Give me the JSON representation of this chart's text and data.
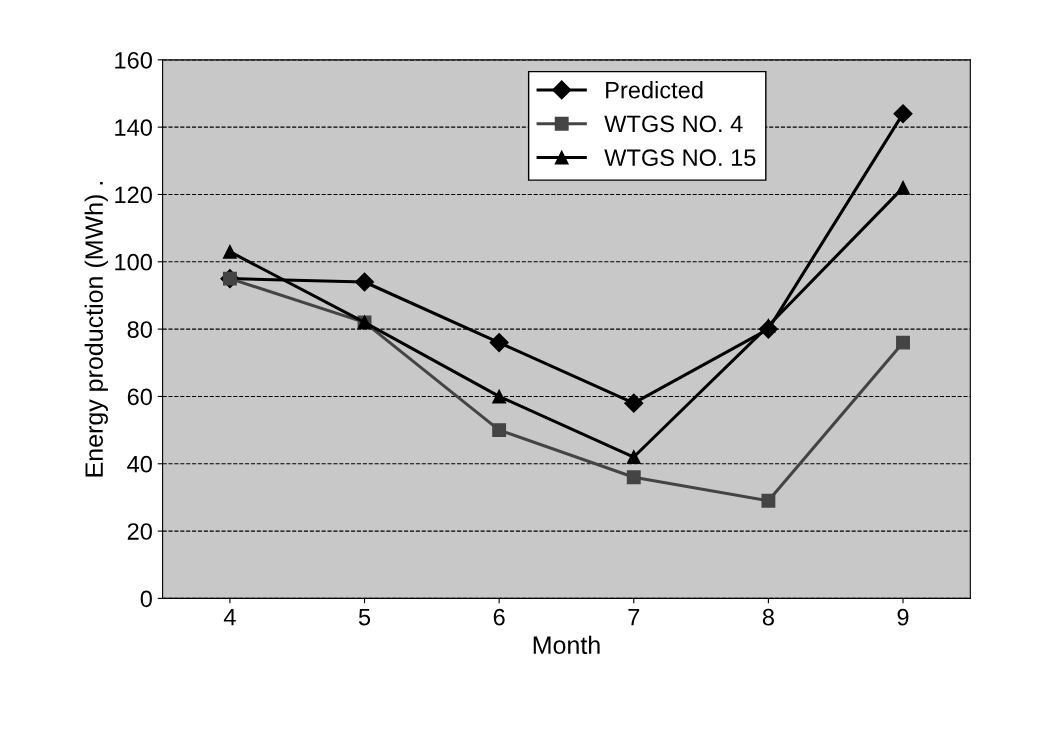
{
  "chart_data": {
    "type": "line",
    "xlabel": "Month",
    "ylabel": "Energy production (MWh) .",
    "categories": [
      "4",
      "5",
      "6",
      "7",
      "8",
      "9"
    ],
    "series": [
      {
        "name": "Predicted",
        "color": "#000000",
        "marker": "diamond",
        "values": [
          95,
          94,
          76,
          58,
          80,
          144
        ]
      },
      {
        "name": "WTGS NO. 4",
        "color": "#444444",
        "marker": "square",
        "values": [
          95,
          82,
          50,
          36,
          29,
          76
        ]
      },
      {
        "name": "WTGS NO. 15",
        "color": "#000000",
        "marker": "triangle",
        "values": [
          103,
          82,
          60,
          42,
          81,
          122
        ]
      }
    ],
    "ylim": [
      0,
      160
    ],
    "yticks": [
      0,
      20,
      40,
      60,
      80,
      100,
      120,
      140,
      160
    ],
    "grid": "y",
    "legend": "top",
    "line_style": "solid"
  }
}
